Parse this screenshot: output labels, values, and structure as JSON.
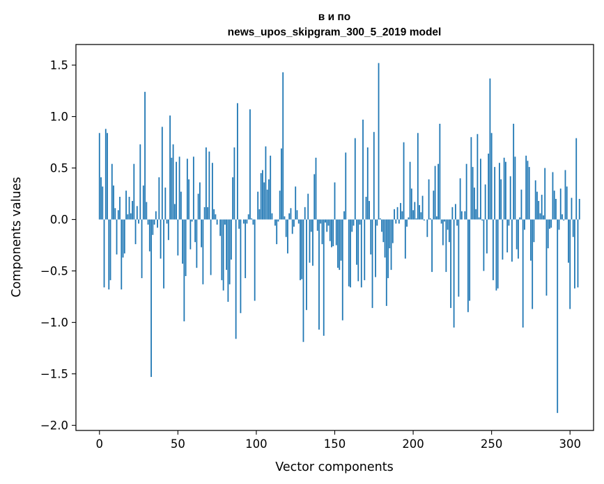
{
  "chart_data": {
    "type": "bar",
    "title_line1": "в и по",
    "title_line2": "news_upos_skipgram_300_5_2019 model",
    "xlabel": "Vector components",
    "ylabel": "Components values",
    "xlim": [
      -15,
      315
    ],
    "ylim": [
      -2.05,
      1.7
    ],
    "xticks": [
      0,
      50,
      100,
      150,
      200,
      250,
      300
    ],
    "yticks": [
      -2.0,
      -1.5,
      -1.0,
      -0.5,
      0.0,
      0.5,
      1.0,
      1.5
    ],
    "xtick_labels": [
      "0",
      "50",
      "100",
      "150",
      "200",
      "250",
      "300"
    ],
    "ytick_labels": [
      "−2.0",
      "−1.5",
      "−1.0",
      "−0.5",
      "0.0",
      "0.5",
      "1.0",
      "1.5"
    ],
    "bar_color": "#1f77b4",
    "values": [
      0.84,
      0.41,
      0.32,
      -0.66,
      0.88,
      0.84,
      -0.68,
      -0.59,
      0.54,
      0.33,
      0.11,
      -0.34,
      0.09,
      0.22,
      -0.68,
      -0.37,
      -0.33,
      0.28,
      0.05,
      0.22,
      0.06,
      0.18,
      0.54,
      -0.24,
      0.13,
      -0.04,
      0.73,
      -0.57,
      0.33,
      1.24,
      0.17,
      -0.05,
      -0.31,
      -1.53,
      -0.15,
      -0.05,
      0.08,
      -0.08,
      0.41,
      -0.38,
      0.9,
      -0.67,
      0.31,
      -0.04,
      -0.2,
      1.01,
      0.6,
      0.73,
      0.15,
      0.56,
      -0.35,
      0.61,
      0.27,
      -0.43,
      -0.99,
      -0.55,
      0.59,
      0.39,
      -0.29,
      -0.02,
      0.61,
      -0.22,
      -0.47,
      0.25,
      0.36,
      -0.27,
      -0.63,
      0.12,
      0.7,
      0.12,
      0.66,
      -0.54,
      0.55,
      0.1,
      0.05,
      -0.05,
      0.0,
      -0.16,
      -0.59,
      -0.69,
      -0.05,
      -0.49,
      -0.8,
      -0.63,
      -0.39,
      0.41,
      0.7,
      -1.16,
      1.13,
      -0.09,
      -0.91,
      0.0,
      -0.04,
      -0.57,
      -0.04,
      0.05,
      1.07,
      0.01,
      -0.05,
      -0.79,
      0.0,
      0.27,
      0.1,
      0.45,
      0.48,
      0.36,
      0.71,
      0.29,
      0.39,
      0.62,
      0.06,
      0.0,
      -0.06,
      -0.24,
      -0.02,
      0.28,
      0.69,
      1.43,
      0.03,
      -0.17,
      -0.33,
      0.06,
      0.11,
      -0.14,
      -0.07,
      0.32,
      0.09,
      -0.04,
      -0.59,
      -0.58,
      -1.19,
      0.12,
      -0.88,
      0.25,
      -0.42,
      -0.12,
      -0.45,
      0.44,
      0.6,
      -0.11,
      -1.07,
      -0.04,
      -0.24,
      -1.13,
      -0.03,
      -0.12,
      -0.06,
      -0.21,
      -0.27,
      -0.26,
      0.36,
      -0.25,
      -0.47,
      -0.49,
      -0.4,
      -0.98,
      0.08,
      0.65,
      0.0,
      -0.65,
      -0.66,
      -0.12,
      -0.06,
      0.79,
      -0.44,
      -0.6,
      -0.05,
      -0.66,
      0.97,
      -0.59,
      0.22,
      0.7,
      0.18,
      -0.34,
      -0.86,
      0.85,
      -0.56,
      -0.06,
      1.52,
      0.01,
      -0.12,
      -0.22,
      -0.37,
      -0.84,
      -0.57,
      -0.28,
      -0.49,
      -0.23,
      0.1,
      -0.04,
      0.12,
      -0.04,
      0.16,
      0.08,
      0.75,
      -0.38,
      -0.07,
      0.02,
      0.56,
      0.3,
      0.09,
      0.17,
      0.01,
      0.84,
      0.14,
      0.07,
      0.23,
      -0.01,
      0.0,
      -0.17,
      0.39,
      0.01,
      -0.51,
      0.28,
      0.52,
      0.03,
      0.54,
      0.93,
      -0.04,
      -0.25,
      -0.02,
      -0.51,
      -0.1,
      -0.22,
      -0.86,
      0.12,
      -1.05,
      0.15,
      -0.06,
      -0.75,
      0.4,
      0.08,
      0.0,
      0.08,
      0.54,
      -0.9,
      -0.79,
      0.8,
      0.51,
      0.31,
      0.1,
      0.83,
      0.02,
      0.59,
      -0.01,
      -0.5,
      0.34,
      -0.33,
      0.64,
      1.37,
      0.84,
      -0.59,
      0.51,
      -0.69,
      -0.67,
      0.55,
      0.39,
      -0.39,
      0.6,
      0.56,
      -0.32,
      -0.06,
      0.42,
      -0.41,
      0.93,
      0.61,
      -0.29,
      -0.38,
      0.02,
      0.29,
      -1.05,
      -0.1,
      0.62,
      0.57,
      0.51,
      -0.4,
      -0.87,
      -0.22,
      0.38,
      0.27,
      0.18,
      0.06,
      0.24,
      0.04,
      0.5,
      -0.74,
      -0.28,
      -0.09,
      -0.08,
      0.46,
      0.28,
      0.2,
      -1.88,
      -0.1,
      0.3,
      0.05,
      -0.01,
      0.48,
      0.32,
      -0.42,
      -0.87,
      0.21,
      -0.17,
      -0.67,
      0.79,
      -0.66,
      0.2
    ]
  }
}
